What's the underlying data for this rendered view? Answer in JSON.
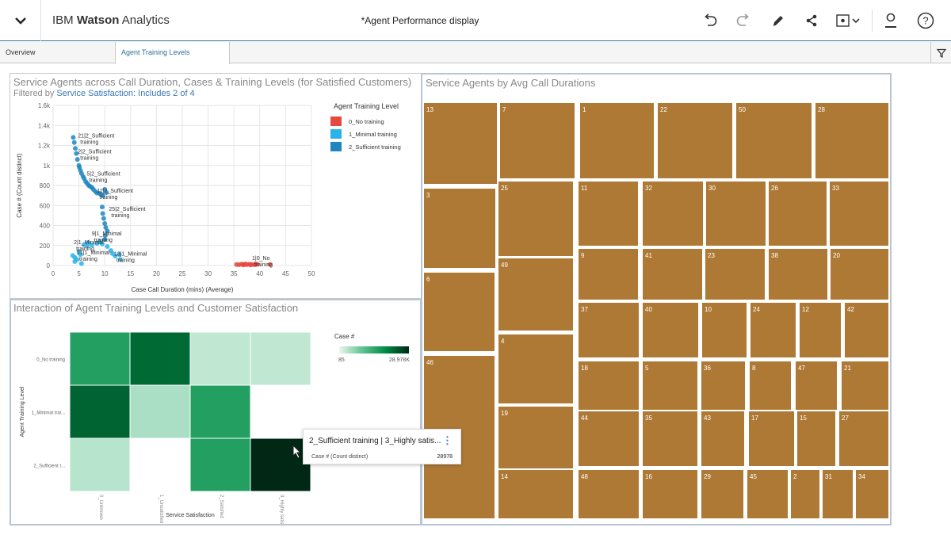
{
  "app": {
    "brand_prefix": "IBM ",
    "brand_bold": "Watson",
    "brand_suffix": " Analytics",
    "doc_title": "*Agent Performance display"
  },
  "toolbar": {
    "icons": [
      "undo-icon",
      "redo-icon",
      "edit-icon",
      "share-icon",
      "view-dropdown-icon",
      "user-icon",
      "help-icon"
    ]
  },
  "tabs": [
    {
      "label": "Overview",
      "active": false
    },
    {
      "label": "Agent Training Levels",
      "active": true
    }
  ],
  "scatter": {
    "title": "Service Agents across Call Duration, Cases & Training Levels (for Satisfied Customers)",
    "filter_prefix": "Filtered by ",
    "filter_link": "Service Satisfaction: Includes 2 of 4",
    "legend_title": "Agent Training Level"
  },
  "heatmap": {
    "title": "Interaction of Agent Training Levels and Customer Satisfaction",
    "legend_title": "Case #",
    "legend_min": "85",
    "legend_max": "28.978K"
  },
  "treemap": {
    "title": "Service Agents by Avg Call Durations"
  },
  "tooltip": {
    "title": "2_Sufficient training | 3_Highly satis...",
    "measure": "Case # (Count distinct)",
    "value": "28978"
  },
  "colors": {
    "accent": "#2d6f96",
    "no_training": "#e8493f",
    "minimal_training": "#2ab3e8",
    "sufficient_training": "#1f86bf",
    "treemap_fill": "#ae7935"
  },
  "chart_data": [
    {
      "type": "scatter",
      "title": "Service Agents across Call Duration, Cases & Training Levels (for Satisfied Customers)",
      "xlabel": "Case Call Duration (mins) (Average)",
      "ylabel": "Case # (Count distinct)",
      "xlim": [
        0,
        50
      ],
      "ylim": [
        0,
        1600
      ],
      "xticks": [
        "0",
        "5",
        "10",
        "15",
        "20",
        "25",
        "30",
        "35",
        "40",
        "45",
        "50"
      ],
      "yticks": [
        "0",
        "200",
        "400",
        "600",
        "800",
        "1k",
        "1.2k",
        "1.4k",
        "1.6k"
      ],
      "grid": true,
      "legend_position": "right",
      "series": [
        {
          "name": "0_No training",
          "color": "#e8493f",
          "points": [
            [
              35.5,
              10
            ],
            [
              36,
              8
            ],
            [
              36.5,
              14
            ],
            [
              37,
              11
            ],
            [
              37.5,
              9
            ],
            [
              38,
              13
            ],
            [
              38.5,
              10
            ],
            [
              39,
              8
            ],
            [
              39.5,
              12
            ],
            [
              37.2,
              15
            ],
            [
              38.2,
              6
            ],
            [
              42,
              10
            ],
            [
              36.8,
              6
            ],
            [
              39.2,
              16
            ]
          ]
        },
        {
          "name": "1_Minimal training",
          "color": "#2ab3e8",
          "points": [
            [
              3.8,
              100
            ],
            [
              4.2,
              80
            ],
            [
              4.6,
              60
            ],
            [
              5,
              140
            ],
            [
              5.3,
              110
            ],
            [
              6,
              210
            ],
            [
              6.8,
              230
            ],
            [
              7.5,
              205
            ],
            [
              8.5,
              220
            ],
            [
              9.5,
              215
            ],
            [
              10.5,
              190
            ],
            [
              11.2,
              150
            ],
            [
              12,
              95
            ],
            [
              12.8,
              110
            ],
            [
              13,
              60
            ],
            [
              4.2,
              40
            ],
            [
              5.5,
              20
            ],
            [
              6.6,
              195
            ],
            [
              9,
              240
            ],
            [
              11.5,
              120
            ]
          ]
        },
        {
          "name": "2_Sufficient training",
          "color": "#1f86bf",
          "points": [
            [
              3.9,
              1280
            ],
            [
              4.1,
              1230
            ],
            [
              4.3,
              1170
            ],
            [
              4.5,
              1120
            ],
            [
              4.7,
              1060
            ],
            [
              5,
              1000
            ],
            [
              5.1,
              980
            ],
            [
              5.3,
              950
            ],
            [
              5.5,
              920
            ],
            [
              5.8,
              890
            ],
            [
              6,
              870
            ],
            [
              6.3,
              840
            ],
            [
              6.6,
              820
            ],
            [
              6.9,
              800
            ],
            [
              7.2,
              790
            ],
            [
              7.5,
              780
            ],
            [
              7.8,
              760
            ],
            [
              8.2,
              740
            ],
            [
              8.5,
              725
            ],
            [
              9,
              720
            ],
            [
              9.3,
              710
            ],
            [
              9.6,
              700
            ],
            [
              10,
              760
            ],
            [
              10.3,
              730
            ],
            [
              9.5,
              585
            ],
            [
              9.6,
              520
            ],
            [
              9.8,
              470
            ],
            [
              10,
              420
            ],
            [
              10.2,
              380
            ],
            [
              10.5,
              345
            ],
            [
              10.1,
              300
            ],
            [
              10,
              260
            ]
          ]
        }
      ],
      "annotations": [
        "21|2_Sufficient training",
        "2|2_Sufficient training",
        "5|2_Sufficient training",
        "11|2_Sufficient training",
        "25|2_Sufficient training",
        "9|1_Minimal training",
        "2|1_Minimal training",
        "21|1_Minimal training",
        "13|1_Minimal training",
        "1|0_No training"
      ]
    },
    {
      "type": "heatmap",
      "title": "Interaction of Agent Training Levels and Customer Satisfaction",
      "xlabel": "Service Satisfaction",
      "ylabel": "Agent Training Level",
      "categories_x": [
        "0_Unknown",
        "1_Unsatisfied",
        "2_Satisfied",
        "3_Highly satis..."
      ],
      "categories_y": [
        "0_No training",
        "1_Minimal trai...",
        "2_Sufficient t..."
      ],
      "rows": [
        [
          0.55,
          0.78,
          0.1,
          0.1
        ],
        [
          0.8,
          0.15,
          0.55,
          0.0
        ],
        [
          0.12,
          0.0,
          0.55,
          1.0
        ]
      ],
      "legend_range": [
        "85",
        "28.978K"
      ],
      "highlight": {
        "x": "3_Highly satis...",
        "y": "2_Sufficient t...",
        "value": 28978
      }
    },
    {
      "type": "treemap",
      "title": "Service Agents by Avg Call Durations",
      "labels": [
        "13",
        "7",
        "1",
        "22",
        "50",
        "28",
        "3",
        "25",
        "11",
        "32",
        "30",
        "26",
        "33",
        "49",
        "9",
        "41",
        "23",
        "38",
        "20",
        "6",
        "37",
        "40",
        "10",
        "24",
        "12",
        "42",
        "4",
        "18",
        "5",
        "36",
        "8",
        "47",
        "21",
        "46",
        "19",
        "44",
        "35",
        "43",
        "17",
        "15",
        "27",
        "14",
        "48",
        "16",
        "29",
        "45",
        "2",
        "31",
        "34"
      ]
    }
  ]
}
